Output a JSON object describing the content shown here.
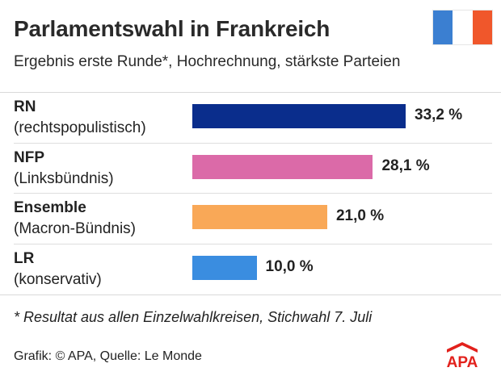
{
  "header": {
    "title": "Parlamentswahl in Frankreich",
    "subtitle": "Ergebnis erste Runde*, Hochrechnung, stärkste Parteien"
  },
  "flag": {
    "colors": [
      "#3b7fd1",
      "#ffffff",
      "#f0572b"
    ]
  },
  "chart_data": {
    "type": "bar",
    "orientation": "horizontal",
    "categories": [
      "RN",
      "NFP",
      "Ensemble",
      "LR"
    ],
    "descriptions": [
      "(rechtspopulistisch)",
      "(Linksbündnis)",
      "(Macron-Bündnis)",
      "(konservativ)"
    ],
    "values": [
      33.2,
      28.1,
      21.0,
      10.0
    ],
    "labels": [
      "33,2 %",
      "28,1 %",
      "21,0 %",
      "10,0 %"
    ],
    "colors": [
      "#0a2d8c",
      "#db6aa8",
      "#f9a857",
      "#3a8de0"
    ],
    "unit": "%",
    "xlim": [
      0,
      33.2
    ],
    "grid": false,
    "legend": "none"
  },
  "footnote": "* Resultat aus allen Einzelwahlkreisen, Stichwahl 7. Juli",
  "source": "Grafik: © APA, Quelle: Le Monde",
  "logo": {
    "text": "APA",
    "color": "#e2211c"
  }
}
